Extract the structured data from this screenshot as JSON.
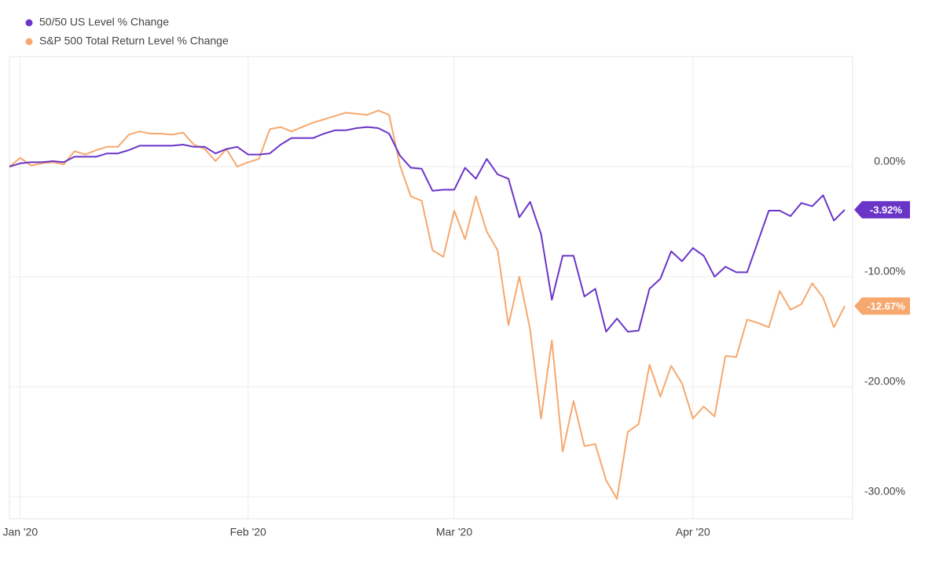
{
  "chart_data": {
    "type": "line",
    "categories": [
      null,
      "Jan '20",
      null,
      null,
      null,
      null,
      null,
      null,
      null,
      null,
      null,
      null,
      null,
      null,
      null,
      null,
      null,
      null,
      null,
      null,
      null,
      null,
      "Feb '20",
      null,
      null,
      null,
      null,
      null,
      null,
      null,
      null,
      null,
      null,
      null,
      null,
      null,
      null,
      null,
      null,
      null,
      null,
      "Mar '20",
      null,
      null,
      null,
      null,
      null,
      null,
      null,
      null,
      null,
      null,
      null,
      null,
      null,
      null,
      null,
      null,
      null,
      null,
      null,
      null,
      null,
      "Apr '20",
      null,
      null,
      null,
      null,
      null,
      null,
      null,
      null,
      null,
      null,
      null,
      null,
      null,
      null
    ],
    "series": [
      {
        "name": "50/50 US Level % Change",
        "color": "#6a35c7",
        "value_label": "-3.92%",
        "values": [
          0,
          0.3,
          0.4,
          0.4,
          0.5,
          0.4,
          0.9,
          0.9,
          0.9,
          1.2,
          1.2,
          1.5,
          1.9,
          1.9,
          1.9,
          1.9,
          2.0,
          1.8,
          1.8,
          1.2,
          1.6,
          1.8,
          1.1,
          1.1,
          1.2,
          2.0,
          2.6,
          2.6,
          2.6,
          3.0,
          3.3,
          3.3,
          3.5,
          3.6,
          3.5,
          3.0,
          1.0,
          -0.1,
          -0.2,
          -2.2,
          -2.1,
          -2.1,
          -0.1,
          -1.1,
          0.7,
          -0.7,
          -1.1,
          -4.6,
          -3.2,
          -6.1,
          -12.1,
          -8.1,
          -8.1,
          -11.8,
          -11.1,
          -15.0,
          -13.8,
          -15.0,
          -14.9,
          -11.1,
          -10.2,
          -7.7,
          -8.6,
          -7.4,
          -8.1,
          -10.0,
          -9.1,
          -9.6,
          -9.6,
          -6.8,
          -4.0,
          -4.0,
          -4.5,
          -3.3,
          -3.6,
          -2.6,
          -4.9,
          -3.92
        ]
      },
      {
        "name": "S&P 500 Total Return Level % Change",
        "color": "#f6a86e",
        "value_label": "-12.67%",
        "values": [
          0,
          0.8,
          0.1,
          0.3,
          0.4,
          0.2,
          1.4,
          1.1,
          1.5,
          1.8,
          1.8,
          2.9,
          3.2,
          3.0,
          3.0,
          2.9,
          3.1,
          2.0,
          1.6,
          0.5,
          1.6,
          0.0,
          0.4,
          0.7,
          3.4,
          3.6,
          3.2,
          3.6,
          4.0,
          4.3,
          4.6,
          4.9,
          4.8,
          4.7,
          5.1,
          4.7,
          0.1,
          -2.7,
          -3.1,
          -7.6,
          -8.2,
          -4.0,
          -6.6,
          -2.7,
          -5.9,
          -7.6,
          -14.4,
          -10.0,
          -14.8,
          -22.9,
          -15.8,
          -25.9,
          -21.3,
          -25.4,
          -25.2,
          -28.5,
          -30.2,
          -24.1,
          -23.4,
          -18.0,
          -20.9,
          -18.1,
          -19.7,
          -22.9,
          -21.8,
          -22.7,
          -17.2,
          -17.3,
          -13.9,
          -14.2,
          -14.6,
          -11.3,
          -13.0,
          -12.5,
          -10.6,
          -11.9,
          -14.6,
          -12.67
        ]
      }
    ],
    "ylim": [
      -32,
      10
    ],
    "yticks": [
      {
        "value": 0,
        "label": "0.00%"
      },
      {
        "value": -10,
        "label": "-10.00%"
      },
      {
        "value": -20,
        "label": "-20.00%"
      },
      {
        "value": -30,
        "label": "-30.00%"
      }
    ],
    "grid": true,
    "legend": "top-left"
  }
}
